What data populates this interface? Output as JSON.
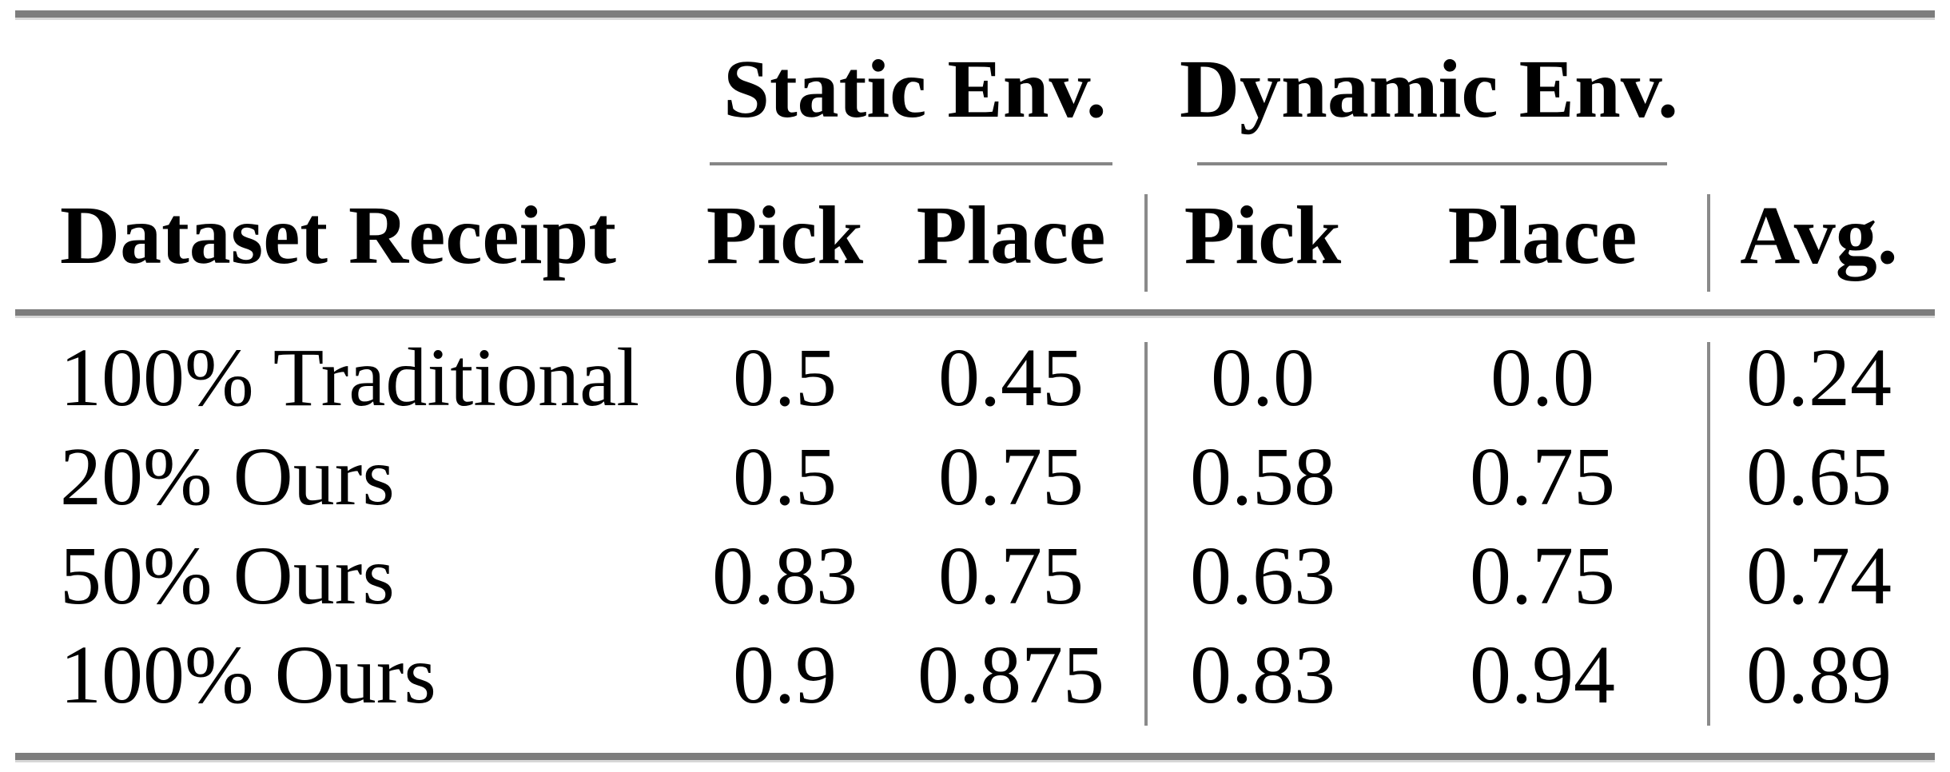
{
  "table": {
    "groups": [
      {
        "label": "Static Env."
      },
      {
        "label": "Dynamic Env."
      }
    ],
    "headers": [
      "Dataset Receipt",
      "Pick",
      "Place",
      "Pick",
      "Place",
      "Avg."
    ],
    "rows": [
      {
        "cells": [
          "100% Traditional",
          "0.5",
          "0.45",
          "0.0",
          "0.0",
          "0.24"
        ]
      },
      {
        "cells": [
          "20% Ours",
          "0.5",
          "0.75",
          "0.58",
          "0.75",
          "0.65"
        ]
      },
      {
        "cells": [
          "50% Ours",
          "0.83",
          "0.75",
          "0.63",
          "0.75",
          "0.74"
        ]
      },
      {
        "cells": [
          "100% Ours",
          "0.9",
          "0.875",
          "0.83",
          "0.94",
          "0.89"
        ]
      }
    ],
    "colors": {
      "text": "#000000",
      "background": "#ffffff",
      "rule_thick": "#7d7d7d",
      "rule_thin": "#868686"
    }
  }
}
